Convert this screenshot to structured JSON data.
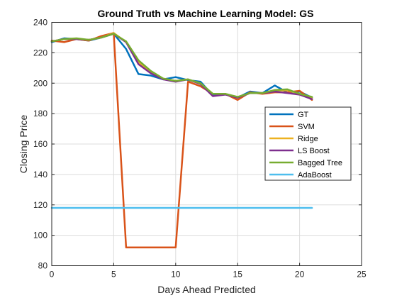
{
  "chart_data": {
    "type": "line",
    "title": "Ground Truth vs Machine Learning Model: GS",
    "xlabel": "Days Ahead Predicted",
    "ylabel": "Closing Price",
    "xlim": [
      0,
      25
    ],
    "ylim": [
      80,
      240
    ],
    "xticks": [
      0,
      5,
      10,
      15,
      20,
      25
    ],
    "yticks": [
      80,
      100,
      120,
      140,
      160,
      180,
      200,
      220,
      240
    ],
    "grid": true,
    "legend": "right",
    "x": [
      0,
      1,
      2,
      3,
      4,
      5,
      6,
      7,
      8,
      9,
      10,
      11,
      12,
      13,
      14,
      15,
      16,
      17,
      18,
      19,
      20,
      21
    ],
    "series": [
      {
        "name": "GT",
        "color": "#0072BD",
        "values": [
          227,
          229.5,
          229,
          228,
          230,
          232.5,
          222.5,
          206,
          205,
          202.5,
          204,
          202,
          201,
          192,
          193,
          190.5,
          194.5,
          193.5,
          198.5,
          194,
          194.5,
          190.5
        ]
      },
      {
        "name": "SVM",
        "color": "#D95319",
        "values": [
          228,
          227,
          229,
          228,
          231,
          233,
          92,
          92,
          92,
          92,
          92,
          201,
          198,
          193,
          193,
          189,
          194,
          193,
          194,
          194,
          195,
          189
        ]
      },
      {
        "name": "Ridge",
        "color": "#EDB120",
        "values": [
          227.5,
          229,
          229,
          228.5,
          230,
          233,
          227,
          214,
          207,
          203,
          201.5,
          202.5,
          199.5,
          193,
          193,
          190.5,
          193.5,
          193.5,
          195,
          195.5,
          193,
          190
        ]
      },
      {
        "name": "LS Boost",
        "color": "#7E2F8E",
        "values": [
          227.5,
          229,
          229,
          228.5,
          230,
          232.5,
          227,
          212.5,
          206.5,
          202.5,
          201,
          202.5,
          199.5,
          191.5,
          192.5,
          190.5,
          193.5,
          193.5,
          194.5,
          193.5,
          192.5,
          189.5
        ]
      },
      {
        "name": "Bagged Tree",
        "color": "#77AC30",
        "values": [
          227.5,
          229,
          229.5,
          228.5,
          230,
          232.5,
          227.5,
          215,
          208,
          203,
          201.5,
          202.5,
          200,
          193,
          193,
          191,
          193.5,
          193.5,
          195.5,
          196,
          193,
          191
        ]
      },
      {
        "name": "AdaBoost",
        "color": "#4DBEEE",
        "values": [
          118,
          118,
          118,
          118,
          118,
          118,
          118,
          118,
          118,
          118,
          118,
          118,
          118,
          118,
          118,
          118,
          118,
          118,
          118,
          118,
          118,
          118
        ]
      }
    ]
  }
}
